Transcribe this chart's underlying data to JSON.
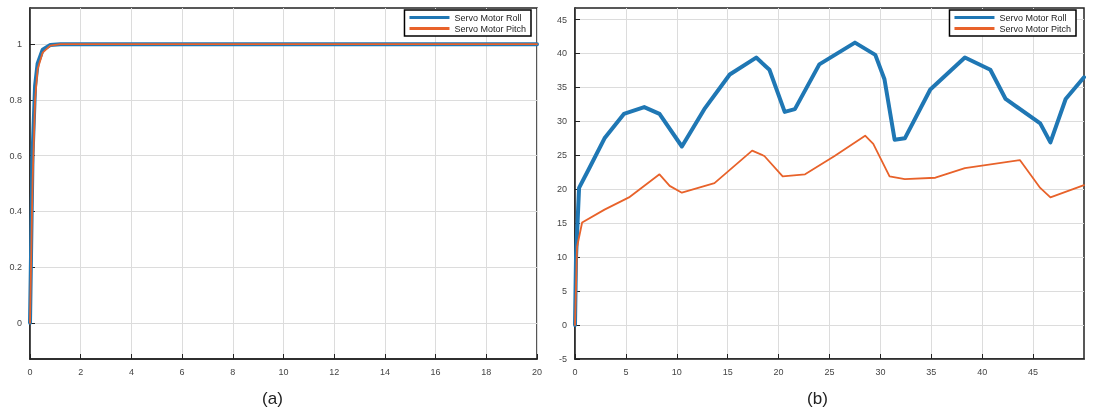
{
  "chart_data": [
    {
      "type": "line",
      "annotations": [
        "(a)"
      ],
      "xlim": [
        0,
        20
      ],
      "xticks": [
        0,
        2,
        4,
        6,
        8,
        10,
        12,
        14,
        16,
        18,
        20
      ],
      "ylim": [
        -0.13,
        1.13
      ],
      "yticks": [
        0,
        0.2,
        0.4,
        0.6,
        0.8,
        1
      ],
      "grid": true,
      "legend": "top right",
      "marker": "none",
      "line_style": "solid",
      "series": [
        {
          "name": "Servo Motor Roll",
          "color": "#1f77b4",
          "x": [
            0,
            0.1,
            0.2,
            0.3,
            0.5,
            0.8,
            1.2,
            20
          ],
          "values": [
            0,
            0.6,
            0.85,
            0.93,
            0.98,
            0.997,
            1,
            1
          ]
        },
        {
          "name": "Servo Motor Pitch",
          "color": "#e8622a",
          "x": [
            0,
            0.1,
            0.2,
            0.3,
            0.5,
            0.8,
            1.2,
            20
          ],
          "values": [
            0,
            0.5,
            0.8,
            0.91,
            0.97,
            0.995,
            1,
            1
          ]
        }
      ]
    },
    {
      "type": "line",
      "annotations": [
        "(b)"
      ],
      "xlim": [
        0,
        50
      ],
      "xticks": [
        0,
        5,
        10,
        15,
        20,
        25,
        30,
        35,
        40,
        45
      ],
      "ylim": [
        -5,
        46.7
      ],
      "yticks": [
        -5,
        0,
        5,
        10,
        15,
        20,
        25,
        30,
        35,
        40,
        45
      ],
      "grid": true,
      "legend": "top right",
      "marker": "none",
      "line_style": "solid",
      "series": [
        {
          "name": "Servo Motor Roll",
          "color": "#1f77b4",
          "x": [
            0,
            0.1,
            0.4,
            1.4,
            2.9,
            4.8,
            6.8,
            8.3,
            10.5,
            12.7,
            15.2,
            17.8,
            19.1,
            20.6,
            21.6,
            24,
            27.5,
            29.5,
            30.4,
            31.4,
            32.4,
            34.9,
            38.3,
            40.8,
            42.3,
            45.7,
            46.7,
            48.2,
            50
          ],
          "values": [
            0,
            10,
            20.2,
            23.1,
            27.5,
            31.1,
            32.1,
            31.1,
            26.3,
            31.8,
            36.9,
            39.4,
            37.6,
            31.4,
            31.8,
            38.4,
            41.6,
            39.8,
            36.2,
            27.3,
            27.5,
            34.7,
            39.4,
            37.6,
            33.3,
            29.7,
            26.9,
            33.3,
            36.5
          ]
        },
        {
          "name": "Servo Motor Pitch",
          "color": "#e8622a",
          "x": [
            0,
            0.2,
            0.7,
            2.9,
            5.3,
            8.3,
            9.3,
            10.5,
            13.7,
            17.4,
            18.6,
            20.4,
            22.6,
            25.5,
            28.5,
            29.3,
            30.9,
            32.4,
            35.4,
            38.3,
            43.7,
            45.7,
            46.7,
            50
          ],
          "values": [
            0,
            11.5,
            15.1,
            17,
            18.8,
            22.2,
            20.5,
            19.5,
            20.9,
            25.7,
            24.9,
            21.9,
            22.2,
            24.9,
            27.9,
            26.7,
            21.9,
            21.5,
            21.7,
            23.1,
            24.3,
            20.2,
            18.8,
            20.6
          ]
        }
      ]
    }
  ]
}
